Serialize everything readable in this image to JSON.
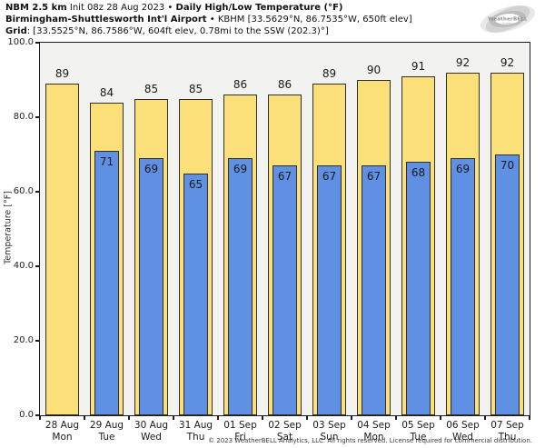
{
  "header": {
    "line1": {
      "model": "NBM 2.5 km",
      "init": " Init 08z 28 Aug 2023 • ",
      "product": "Daily High/Low Temperature (°F)"
    },
    "line2": {
      "station": "Birmingham-Shuttlesworth Int'l Airport",
      "details": " • KBHM [33.5629°N, 86.7535°W, 650ft elev]"
    },
    "line3": {
      "label": "Grid",
      "details": ": [33.5525°N, 86.7586°W, 604ft elev, 0.78mi to the SSW (202.3)°]"
    }
  },
  "logo": {
    "brand": "WeatherBELL",
    "sub": "Analytics LLC"
  },
  "chart_data": {
    "type": "bar",
    "title": "Daily High/Low Temperature (°F)",
    "ylabel": "Temperature [°F]",
    "ylim": [
      0,
      100
    ],
    "yticks": [
      0,
      20,
      40,
      60,
      80,
      100
    ],
    "ytick_labels": [
      "0.0",
      "20.0",
      "40.0",
      "60.0",
      "80.0",
      "100.0"
    ],
    "grid": false,
    "legend": false,
    "plot_bg": "#F2F2F0",
    "categories": [
      {
        "date": "28 Aug",
        "day": "Mon"
      },
      {
        "date": "29 Aug",
        "day": "Tue"
      },
      {
        "date": "30 Aug",
        "day": "Wed"
      },
      {
        "date": "31 Aug",
        "day": "Thu"
      },
      {
        "date": "01 Sep",
        "day": "Fri"
      },
      {
        "date": "02 Sep",
        "day": "Sat"
      },
      {
        "date": "03 Sep",
        "day": "Sun"
      },
      {
        "date": "04 Sep",
        "day": "Mon"
      },
      {
        "date": "05 Sep",
        "day": "Tue"
      },
      {
        "date": "06 Sep",
        "day": "Wed"
      },
      {
        "date": "07 Sep",
        "day": "Thu"
      }
    ],
    "series": [
      {
        "name": "High",
        "color": "#FBE07A",
        "values": [
          89,
          84,
          85,
          85,
          86,
          86,
          89,
          90,
          91,
          92,
          92
        ]
      },
      {
        "name": "Low",
        "color": "#6090E4",
        "values": [
          null,
          71,
          69,
          65,
          69,
          67,
          67,
          67,
          68,
          69,
          70
        ]
      }
    ]
  },
  "footer": {
    "copyright": "© 2023 WeatherBELL Analytics, LLC. All rights reserved. License required for commercial distribution."
  }
}
